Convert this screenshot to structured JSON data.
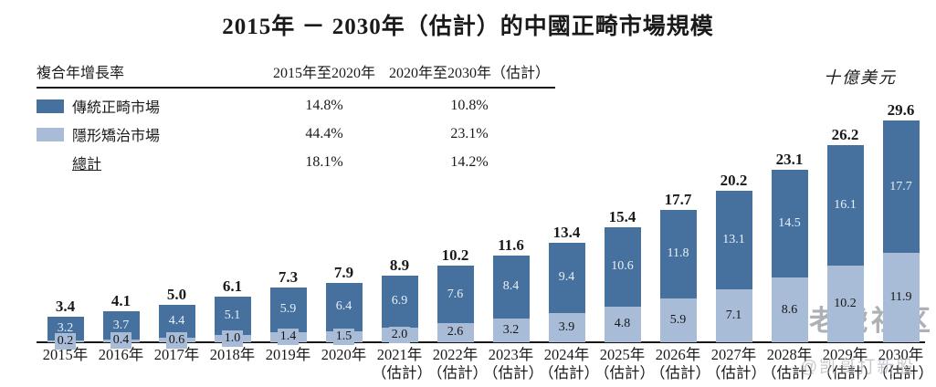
{
  "title": "2015年 － 2030年（估計）的中國正畸市場規模",
  "unit_label": "十億美元",
  "colors": {
    "traditional": "#46719f",
    "invisible": "#a9bcd7",
    "axis": "#161616",
    "watermark": "#8d939a"
  },
  "cagr_table": {
    "header": {
      "label": "複合年增長率",
      "col1": "2015年至2020年",
      "col2": "2020年至2030年（估計）"
    },
    "rows": [
      {
        "label": "傳統正畸市場",
        "swatch": "dark",
        "col1": "14.8%",
        "col2": "10.8%"
      },
      {
        "label": "隱形矯治市場",
        "swatch": "light",
        "col1": "44.4%",
        "col2": "23.1%"
      },
      {
        "label": "總計",
        "swatch": "none",
        "col1": "18.1%",
        "col2": "14.2%"
      }
    ]
  },
  "chart_data": {
    "type": "bar",
    "stacked": true,
    "title": "2015年 － 2030年（估計）的中國正畸市場規模",
    "ylabel": "十億美元",
    "ylim": [
      0,
      30
    ],
    "grid": false,
    "legend_position": "top-left-table",
    "stack_order_bottom_to_top": [
      "隱形矯治市場",
      "傳統正畸市場"
    ],
    "categories": [
      {
        "label": "2015年",
        "sub": ""
      },
      {
        "label": "2016年",
        "sub": ""
      },
      {
        "label": "2017年",
        "sub": ""
      },
      {
        "label": "2018年",
        "sub": ""
      },
      {
        "label": "2019年",
        "sub": ""
      },
      {
        "label": "2020年",
        "sub": ""
      },
      {
        "label": "2021年",
        "sub": "（估計）"
      },
      {
        "label": "2022年",
        "sub": "（估計）"
      },
      {
        "label": "2023年",
        "sub": "（估計）"
      },
      {
        "label": "2024年",
        "sub": "（估計）"
      },
      {
        "label": "2025年",
        "sub": "（估計）"
      },
      {
        "label": "2026年",
        "sub": "（估計）"
      },
      {
        "label": "2027年",
        "sub": "（估計）"
      },
      {
        "label": "2028年",
        "sub": "（估計）"
      },
      {
        "label": "2029年",
        "sub": "（估計）"
      },
      {
        "label": "2030年",
        "sub": "（估計）"
      }
    ],
    "series": [
      {
        "name": "傳統正畸市場",
        "color": "#46719f",
        "values": [
          3.2,
          3.7,
          4.4,
          5.1,
          5.9,
          6.4,
          6.9,
          7.6,
          8.4,
          9.4,
          10.6,
          11.8,
          13.1,
          14.5,
          16.1,
          17.7
        ]
      },
      {
        "name": "隱形矯治市場",
        "color": "#a9bcd7",
        "values": [
          0.2,
          0.4,
          0.6,
          1.0,
          1.4,
          1.5,
          2.0,
          2.6,
          3.2,
          3.9,
          4.8,
          5.9,
          7.1,
          8.6,
          10.2,
          11.9
        ]
      }
    ],
    "totals": [
      3.4,
      4.1,
      5.0,
      6.1,
      7.3,
      7.9,
      8.9,
      10.2,
      11.6,
      13.4,
      15.4,
      17.7,
      20.2,
      23.1,
      26.2,
      29.6
    ]
  },
  "watermark": {
    "brand": "老虎社区",
    "handle": "@凯哥打新股"
  }
}
